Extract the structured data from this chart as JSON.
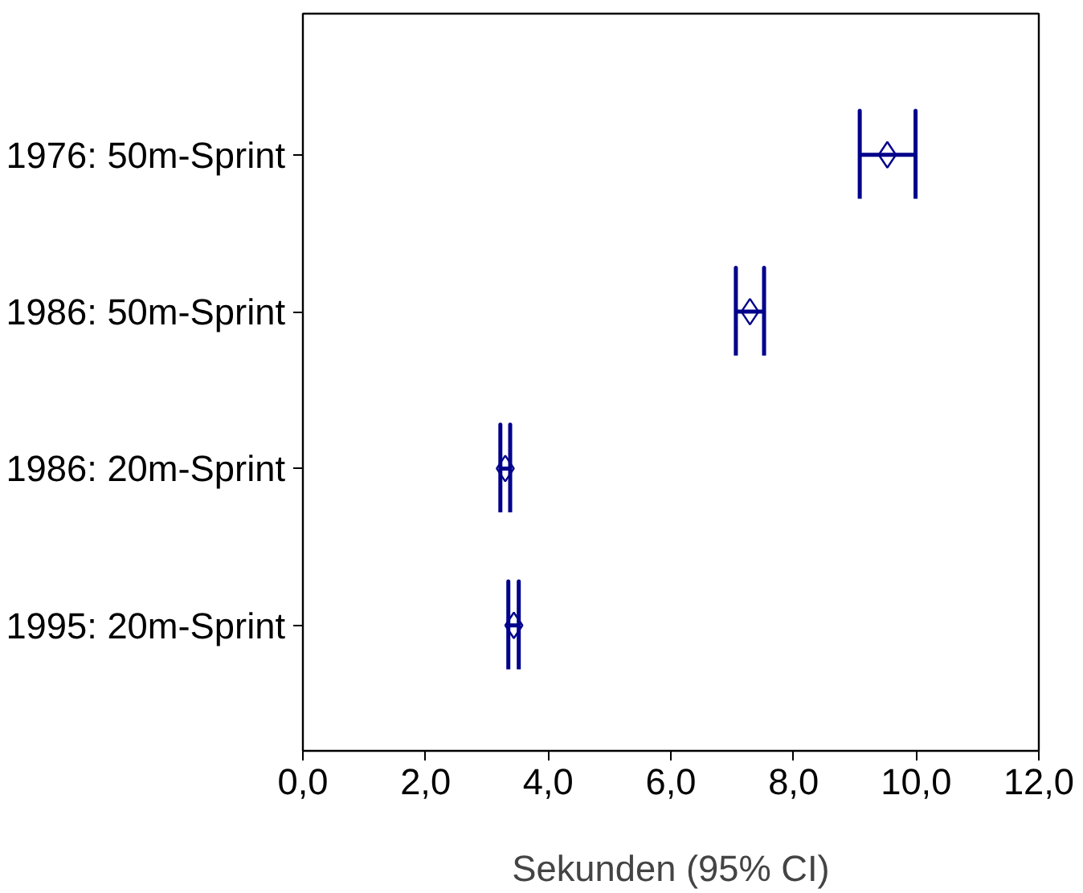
{
  "chart_data": {
    "type": "scatter",
    "orientation": "horizontal",
    "xlabel": "Sekunden (95% CI)",
    "categories": [
      "1976: 50m-Sprint",
      "1986: 50m-Sprint",
      "1986: 20m-Sprint",
      "1995: 20m-Sprint"
    ],
    "values": [
      9.53,
      7.29,
      3.3,
      3.44
    ],
    "errors": [
      [
        9.08,
        9.99
      ],
      [
        7.06,
        7.52
      ],
      [
        3.22,
        3.38
      ],
      [
        3.35,
        3.52
      ]
    ],
    "colors": [
      "#00008b",
      "#00008b",
      "#00008b",
      "#00008b"
    ],
    "marker": "diamond",
    "grid": false,
    "xlim": [
      0,
      12
    ],
    "xticks": [
      {
        "value": 0,
        "label": "0,0"
      },
      {
        "value": 2,
        "label": "2,0"
      },
      {
        "value": 4,
        "label": "4,0"
      },
      {
        "value": 6,
        "label": "6,0"
      },
      {
        "value": 8,
        "label": "8,0"
      },
      {
        "value": 10,
        "label": "10,0"
      },
      {
        "value": 12,
        "label": "12,0"
      }
    ]
  }
}
